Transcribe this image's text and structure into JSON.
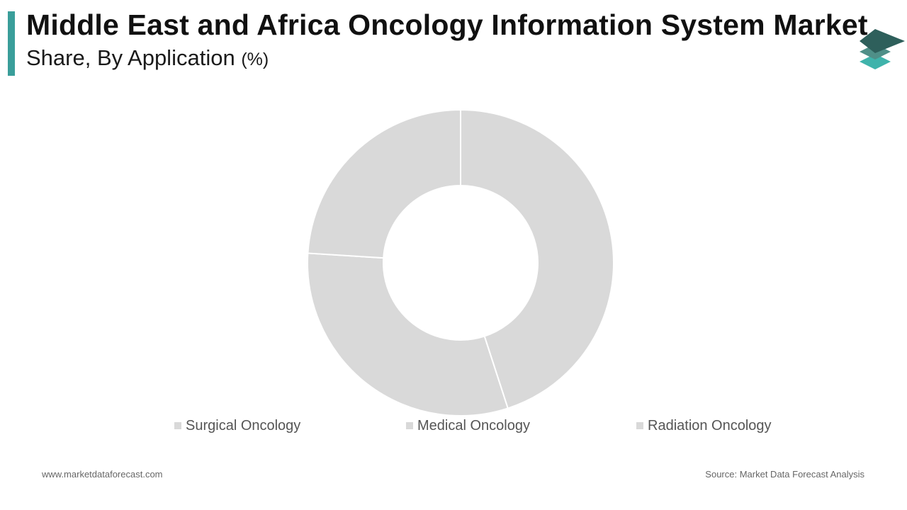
{
  "header": {
    "title": "Middle East and Africa Oncology Information System Market",
    "subtitle": "Share, By Application",
    "unit": "(%)"
  },
  "logo": {
    "icon": "stacked-layers-logo-icon",
    "colors": [
      "#2e5f5b",
      "#4f8f88",
      "#3fb3ab"
    ]
  },
  "colors": {
    "accent": "#3a9e9a",
    "slice": "#d9d9d9",
    "separator": "#ffffff"
  },
  "chart_data": {
    "type": "pie",
    "donut": true,
    "categories": [
      "Surgical Oncology",
      "Medical Oncology",
      "Radiation Oncology"
    ],
    "values": [
      45,
      31,
      24
    ],
    "title": "Middle East and Africa Oncology Information System Market",
    "subtitle": "Share, By Application (%)",
    "legend": "bottom"
  },
  "legend": {
    "items": [
      {
        "label": "Surgical Oncology"
      },
      {
        "label": "Medical Oncology"
      },
      {
        "label": "Radiation Oncology"
      }
    ]
  },
  "footer": {
    "website": "www.marketdataforecast.com",
    "source": "Source: Market Data Forecast Analysis"
  }
}
